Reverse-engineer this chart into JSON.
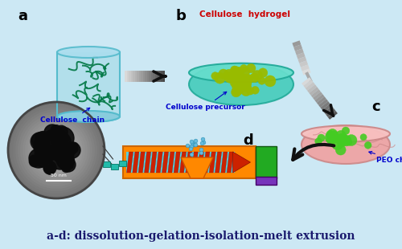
{
  "bg_color": "#cce8f4",
  "border_color": "#7ab8d4",
  "title_text": "a-d: dissolution-gelation-isolation-melt extrusion",
  "title_color": "#1a1a6e",
  "title_fontsize": 10,
  "label_a": "a",
  "label_b": "b",
  "label_c": "c",
  "label_d": "d",
  "cellulose_chain_label": "Cellulose  chain",
  "cellulose_hydrogel_label": "Cellulose  hydrogel",
  "cellulose_precursor_label": "Cellulose precursor",
  "peo_chain_label": "PEO chain",
  "nm_label": "50 nm",
  "beaker_fill": "#aadde8",
  "beaker_edge": "#55bbcc",
  "chain_color": "#007744",
  "dish_b_fill": "#44ccbb",
  "dish_b_edge": "#22aa99",
  "particle_b_color": "#99bb00",
  "dish_c_fill": "#f0a0a0",
  "dish_c_edge": "#cc8888",
  "particle_c_color": "#44cc22",
  "extruder_color": "#ff8800",
  "screw_color": "#cc2200",
  "screw_bg": "#55ccdd",
  "motor_color": "#22aa22",
  "base_color": "#7733bb",
  "funnel_color": "#ff8800",
  "particle_funnel": "#66bbdd",
  "tem_bg": "#888888",
  "tem_dark": "#111111",
  "arrow_color": "#333333",
  "label_color": "#0000cc",
  "hydrogel_color": "#cc0000"
}
